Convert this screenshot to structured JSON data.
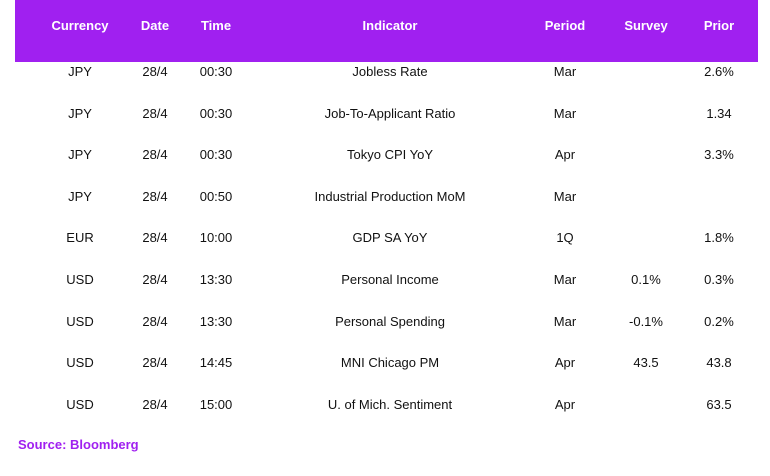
{
  "table": {
    "headers": {
      "currency": "Currency",
      "date": "Date",
      "time": "Time",
      "indicator": "Indicator",
      "period": "Period",
      "survey": "Survey",
      "prior": "Prior"
    },
    "rows": [
      {
        "currency": "JPY",
        "date": "28/4",
        "time": "00:30",
        "indicator": "Jobless Rate",
        "period": "Mar",
        "survey": "",
        "prior": "2.6%"
      },
      {
        "currency": "JPY",
        "date": "28/4",
        "time": "00:30",
        "indicator": "Job-To-Applicant Ratio",
        "period": "Mar",
        "survey": "",
        "prior": "1.34"
      },
      {
        "currency": "JPY",
        "date": "28/4",
        "time": "00:30",
        "indicator": "Tokyo CPI YoY",
        "period": "Apr",
        "survey": "",
        "prior": "3.3%"
      },
      {
        "currency": "JPY",
        "date": "28/4",
        "time": "00:50",
        "indicator": "Industrial Production MoM",
        "period": "Mar",
        "survey": "",
        "prior": ""
      },
      {
        "currency": "EUR",
        "date": "28/4",
        "time": "10:00",
        "indicator": "GDP SA YoY",
        "period": "1Q",
        "survey": "",
        "prior": "1.8%"
      },
      {
        "currency": "USD",
        "date": "28/4",
        "time": "13:30",
        "indicator": "Personal Income",
        "period": "Mar",
        "survey": "0.1%",
        "prior": "0.3%"
      },
      {
        "currency": "USD",
        "date": "28/4",
        "time": "13:30",
        "indicator": "Personal Spending",
        "period": "Mar",
        "survey": "-0.1%",
        "prior": "0.2%"
      },
      {
        "currency": "USD",
        "date": "28/4",
        "time": "14:45",
        "indicator": "MNI Chicago PM",
        "period": "Apr",
        "survey": "43.5",
        "prior": "43.8"
      },
      {
        "currency": "USD",
        "date": "28/4",
        "time": "15:00",
        "indicator": "U. of Mich. Sentiment",
        "period": "Apr",
        "survey": "",
        "prior": "63.5"
      }
    ]
  },
  "source": "Source: Bloomberg",
  "colors": {
    "header_bg": "#a020f0",
    "header_text": "#ffffff",
    "source_text": "#a020f0"
  }
}
